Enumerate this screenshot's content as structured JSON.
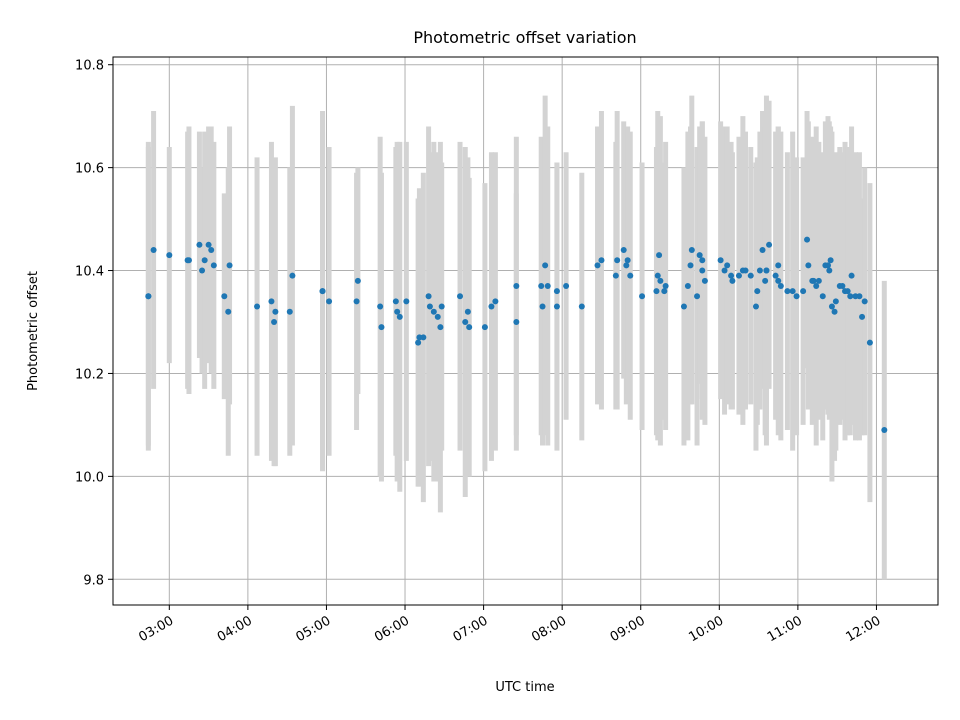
{
  "chart_data": {
    "type": "scatter",
    "title": "Photometric offset variation",
    "xlabel": "UTC time",
    "ylabel": "Photometric offset",
    "xlim": [
      "02:17",
      "12:47"
    ],
    "ylim": [
      9.75,
      10.815
    ],
    "x_ticks": [
      "03:00",
      "04:00",
      "05:00",
      "06:00",
      "07:00",
      "08:00",
      "09:00",
      "10:00",
      "11:00",
      "12:00"
    ],
    "y_ticks": [
      9.8,
      10.0,
      10.2,
      10.4,
      10.6,
      10.8
    ],
    "grid": true,
    "marker_color": "#1f77b4",
    "errorbar_color": "#d3d3d3",
    "series": [
      {
        "points": [
          [
            "02:44",
            10.35,
            0.3
          ],
          [
            "02:44",
            10.35,
            0.29
          ],
          [
            "02:48",
            10.44,
            0.27
          ],
          [
            "03:00",
            10.43,
            0.21
          ],
          [
            "03:14",
            10.42,
            0.25
          ],
          [
            "03:15",
            10.42,
            0.26
          ],
          [
            "03:23",
            10.45,
            0.22
          ],
          [
            "03:25",
            10.4,
            0.2
          ],
          [
            "03:27",
            10.42,
            0.25
          ],
          [
            "03:30",
            10.45,
            0.23
          ],
          [
            "03:32",
            10.44,
            0.24
          ],
          [
            "03:34",
            10.41,
            0.24
          ],
          [
            "03:42",
            10.35,
            0.2
          ],
          [
            "03:45",
            10.32,
            0.28
          ],
          [
            "03:46",
            10.41,
            0.27
          ],
          [
            "04:07",
            10.33,
            0.29
          ],
          [
            "04:18",
            10.34,
            0.31
          ],
          [
            "04:20",
            10.3,
            0.28
          ],
          [
            "04:21",
            10.32,
            0.3
          ],
          [
            "04:32",
            10.32,
            0.28
          ],
          [
            "04:34",
            10.39,
            0.33
          ],
          [
            "04:57",
            10.36,
            0.31
          ],
          [
            "04:57",
            10.36,
            0.35
          ],
          [
            "05:02",
            10.34,
            0.3
          ],
          [
            "05:23",
            10.34,
            0.25
          ],
          [
            "05:24",
            10.38,
            0.22
          ],
          [
            "05:41",
            10.33,
            0.33
          ],
          [
            "05:42",
            10.29,
            0.3
          ],
          [
            "05:53",
            10.34,
            0.3
          ],
          [
            "05:54",
            10.32,
            0.33
          ],
          [
            "05:56",
            10.31,
            0.34
          ],
          [
            "06:01",
            10.34,
            0.31
          ],
          [
            "06:10",
            10.26,
            0.28
          ],
          [
            "06:11",
            10.27,
            0.29
          ],
          [
            "06:14",
            10.27,
            0.32
          ],
          [
            "06:18",
            10.35,
            0.33
          ],
          [
            "06:19",
            10.33,
            0.3
          ],
          [
            "06:22",
            10.32,
            0.33
          ],
          [
            "06:25",
            10.31,
            0.32
          ],
          [
            "06:27",
            10.29,
            0.36
          ],
          [
            "06:28",
            10.33,
            0.28
          ],
          [
            "06:42",
            10.35,
            0.3
          ],
          [
            "06:46",
            10.3,
            0.34
          ],
          [
            "06:48",
            10.32,
            0.3
          ],
          [
            "06:49",
            10.29,
            0.29
          ],
          [
            "07:01",
            10.29,
            0.28
          ],
          [
            "07:06",
            10.33,
            0.3
          ],
          [
            "07:09",
            10.34,
            0.29
          ],
          [
            "07:25",
            10.3,
            0.25
          ],
          [
            "07:25",
            10.37,
            0.29
          ],
          [
            "07:44",
            10.37,
            0.29
          ],
          [
            "07:45",
            10.33,
            0.27
          ],
          [
            "07:47",
            10.41,
            0.33
          ],
          [
            "07:49",
            10.37,
            0.31
          ],
          [
            "07:56",
            10.33,
            0.28
          ],
          [
            "07:56",
            10.36,
            0.25
          ],
          [
            "08:03",
            10.37,
            0.26
          ],
          [
            "08:15",
            10.33,
            0.26
          ],
          [
            "08:27",
            10.41,
            0.27
          ],
          [
            "08:30",
            10.42,
            0.29
          ],
          [
            "08:41",
            10.39,
            0.26
          ],
          [
            "08:42",
            10.42,
            0.29
          ],
          [
            "08:47",
            10.44,
            0.25
          ],
          [
            "08:49",
            10.41,
            0.27
          ],
          [
            "08:50",
            10.42,
            0.26
          ],
          [
            "08:52",
            10.39,
            0.28
          ],
          [
            "09:01",
            10.35,
            0.26
          ],
          [
            "09:12",
            10.36,
            0.28
          ],
          [
            "09:13",
            10.39,
            0.32
          ],
          [
            "09:14",
            10.43,
            0.25
          ],
          [
            "09:15",
            10.38,
            0.32
          ],
          [
            "09:18",
            10.36,
            0.25
          ],
          [
            "09:19",
            10.37,
            0.28
          ],
          [
            "09:33",
            10.33,
            0.27
          ],
          [
            "09:36",
            10.37,
            0.3
          ],
          [
            "09:38",
            10.41,
            0.27
          ],
          [
            "09:39",
            10.44,
            0.3
          ],
          [
            "09:43",
            10.35,
            0.29
          ],
          [
            "09:45",
            10.43,
            0.25
          ],
          [
            "09:47",
            10.4,
            0.29
          ],
          [
            "09:47",
            10.42,
            0.27
          ],
          [
            "09:49",
            10.38,
            0.28
          ],
          [
            "10:01",
            10.42,
            0.27
          ],
          [
            "10:04",
            10.4,
            0.28
          ],
          [
            "10:06",
            10.41,
            0.27
          ],
          [
            "10:09",
            10.39,
            0.26
          ],
          [
            "10:10",
            10.38,
            0.25
          ],
          [
            "10:15",
            10.39,
            0.27
          ],
          [
            "10:18",
            10.4,
            0.3
          ],
          [
            "10:20",
            10.4,
            0.27
          ],
          [
            "10:24",
            10.39,
            0.25
          ],
          [
            "10:28",
            10.33,
            0.28
          ],
          [
            "10:29",
            10.36,
            0.26
          ],
          [
            "10:31",
            10.4,
            0.27
          ],
          [
            "10:33",
            10.44,
            0.27
          ],
          [
            "10:35",
            10.38,
            0.3
          ],
          [
            "10:36",
            10.4,
            0.34
          ],
          [
            "10:36",
            10.4,
            0.29
          ],
          [
            "10:38",
            10.45,
            0.28
          ],
          [
            "10:43",
            10.39,
            0.28
          ],
          [
            "10:45",
            10.41,
            0.27
          ],
          [
            "10:45",
            10.38,
            0.3
          ],
          [
            "10:47",
            10.37,
            0.3
          ],
          [
            "10:52",
            10.36,
            0.27
          ],
          [
            "10:56",
            10.36,
            0.31
          ],
          [
            "10:59",
            10.35,
            0.27
          ],
          [
            "11:04",
            10.36,
            0.26
          ],
          [
            "11:07",
            10.46,
            0.25
          ],
          [
            "11:08",
            10.41,
            0.28
          ],
          [
            "11:11",
            10.38,
            0.28
          ],
          [
            "11:12",
            10.38,
            0.27
          ],
          [
            "11:14",
            10.37,
            0.31
          ],
          [
            "11:16",
            10.38,
            0.27
          ],
          [
            "11:19",
            10.35,
            0.28
          ],
          [
            "11:21",
            10.41,
            0.28
          ],
          [
            "11:23",
            10.41,
            0.29
          ],
          [
            "11:24",
            10.4,
            0.29
          ],
          [
            "11:25",
            10.42,
            0.26
          ],
          [
            "11:26",
            10.33,
            0.34
          ],
          [
            "11:28",
            10.32,
            0.29
          ],
          [
            "11:29",
            10.34,
            0.29
          ],
          [
            "11:32",
            10.37,
            0.27
          ],
          [
            "11:34",
            10.37,
            0.26
          ],
          [
            "11:36",
            10.36,
            0.29
          ],
          [
            "11:38",
            10.36,
            0.28
          ],
          [
            "11:40",
            10.35,
            0.27
          ],
          [
            "11:41",
            10.39,
            0.29
          ],
          [
            "11:44",
            10.35,
            0.28
          ],
          [
            "11:47",
            10.35,
            0.28
          ],
          [
            "11:49",
            10.31,
            0.23
          ],
          [
            "11:51",
            10.34,
            0.26
          ],
          [
            "11:55",
            10.26,
            0.31
          ],
          [
            "12:06",
            10.09,
            0.29
          ]
        ]
      }
    ]
  }
}
